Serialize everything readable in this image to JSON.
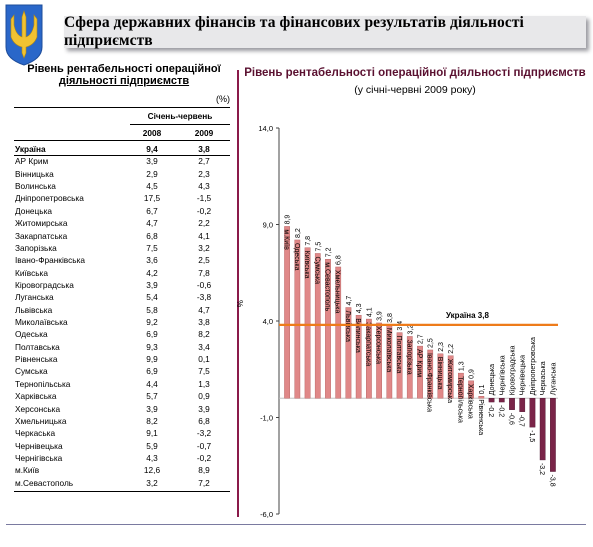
{
  "header": {
    "title": "Сфера державних фінансів та фінансових результатів діяльності підприємств"
  },
  "table": {
    "title_line1": "Рівень рентабельності операційної",
    "title_line2": "діяльності підприємств",
    "unit": "(%)",
    "period": "Січень-червень",
    "col1": "2008",
    "col2": "2009",
    "rows": [
      {
        "name": "Україна",
        "v2008": "9,4",
        "v2009": "3,8"
      },
      {
        "name": "АР Крим",
        "v2008": "3,9",
        "v2009": "2,7"
      },
      {
        "name": "Вінницька",
        "v2008": "2,9",
        "v2009": "2,3"
      },
      {
        "name": "Волинська",
        "v2008": "4,5",
        "v2009": "4,3"
      },
      {
        "name": "Дніпропетровська",
        "v2008": "17,5",
        "v2009": "-1,5"
      },
      {
        "name": "Донецька",
        "v2008": "6,7",
        "v2009": "-0,2"
      },
      {
        "name": "Житомирська",
        "v2008": "4,7",
        "v2009": "2,2"
      },
      {
        "name": "Закарпатська",
        "v2008": "6,8",
        "v2009": "4,1"
      },
      {
        "name": "Запорізька",
        "v2008": "7,5",
        "v2009": "3,2"
      },
      {
        "name": "Івано-Франківська",
        "v2008": "3,6",
        "v2009": "2,5"
      },
      {
        "name": "Київська",
        "v2008": "4,2",
        "v2009": "7,8"
      },
      {
        "name": "Кіровоградська",
        "v2008": "3,9",
        "v2009": "-0,6"
      },
      {
        "name": "Луганська",
        "v2008": "5,4",
        "v2009": "-3,8"
      },
      {
        "name": "Львівська",
        "v2008": "5,8",
        "v2009": "4,7"
      },
      {
        "name": "Миколаївська",
        "v2008": "9,2",
        "v2009": "3,8"
      },
      {
        "name": "Одеська",
        "v2008": "6,9",
        "v2009": "8,2"
      },
      {
        "name": "Полтавська",
        "v2008": "9,3",
        "v2009": "3,4"
      },
      {
        "name": "Рівненська",
        "v2008": "9,9",
        "v2009": "0,1"
      },
      {
        "name": "Сумська",
        "v2008": "6,9",
        "v2009": "7,5"
      },
      {
        "name": "Тернопільська",
        "v2008": "4,4",
        "v2009": "1,3"
      },
      {
        "name": "Харківська",
        "v2008": "5,7",
        "v2009": "0,9"
      },
      {
        "name": "Херсонська",
        "v2008": "3,9",
        "v2009": "3,9"
      },
      {
        "name": "Хмельницька",
        "v2008": "8,2",
        "v2009": "6,8"
      },
      {
        "name": "Черкаська",
        "v2008": "9,1",
        "v2009": "-3,2"
      },
      {
        "name": "Чернівецька",
        "v2008": "5,9",
        "v2009": "-0,7"
      },
      {
        "name": "Чернігівська",
        "v2008": "4,3",
        "v2009": "-0,2"
      },
      {
        "name": "м.Київ",
        "v2008": "12,6",
        "v2009": "8,9"
      },
      {
        "name": "м.Севастополь",
        "v2008": "3,2",
        "v2009": "7,2"
      }
    ]
  },
  "chart_data": {
    "type": "bar",
    "title": "Рівень рентабельності операційної діяльності підприємств",
    "subtitle": "(у січні-червні 2009 року)",
    "ylabel": "%",
    "ylim": [
      -6.0,
      14.0
    ],
    "yticks": [
      "14,0",
      "9,0",
      "4,0",
      "-1,0",
      "-6,0"
    ],
    "ytick_values": [
      14,
      9,
      4,
      -1,
      -6
    ],
    "reference_line": {
      "label": "Україна 3,8",
      "value": 3.8,
      "color": "#ee7b1a"
    },
    "positive_color": "#e08888",
    "negative_color": "#7a2448",
    "categories": [
      "м.Київ",
      "Одеська",
      "Київська",
      "Сумська",
      "м.Севастополь",
      "Хмельницька",
      "Львівська",
      "Волинська",
      "Закарпатська",
      "Херсонська",
      "Миколаївська",
      "Полтавська",
      "Запорізька",
      "АР Крим",
      "Івано-Франківська",
      "Вінницька",
      "Житомирська",
      "Тернопільська",
      "Харківська",
      "Рівненська",
      "Донецька",
      "Чернігівська",
      "Кіровоградська",
      "Чернівецька",
      "Дніпропетровська",
      "Черкаська",
      "Луганська"
    ],
    "values": [
      8.9,
      8.2,
      7.8,
      7.5,
      7.2,
      6.8,
      4.7,
      4.3,
      4.1,
      3.9,
      3.8,
      3.4,
      3.2,
      2.7,
      2.5,
      2.3,
      2.2,
      1.3,
      0.9,
      0.1,
      -0.2,
      -0.2,
      -0.6,
      -0.7,
      -1.5,
      -3.2,
      -3.8
    ],
    "value_labels": [
      "8,9",
      "8,2",
      "7,8",
      "7,5",
      "7,2",
      "6,8",
      "4,7",
      "4,3",
      "4,1",
      "3,9",
      "3,8",
      "3,4",
      "3,2",
      "2,7",
      "2,5",
      "2,3",
      "2,2",
      "1,3",
      "0,9",
      "0,1",
      "-0,2",
      "-0,2",
      "-0,6",
      "-0,7",
      "-1,5",
      "-3,2",
      "-3,8"
    ]
  }
}
